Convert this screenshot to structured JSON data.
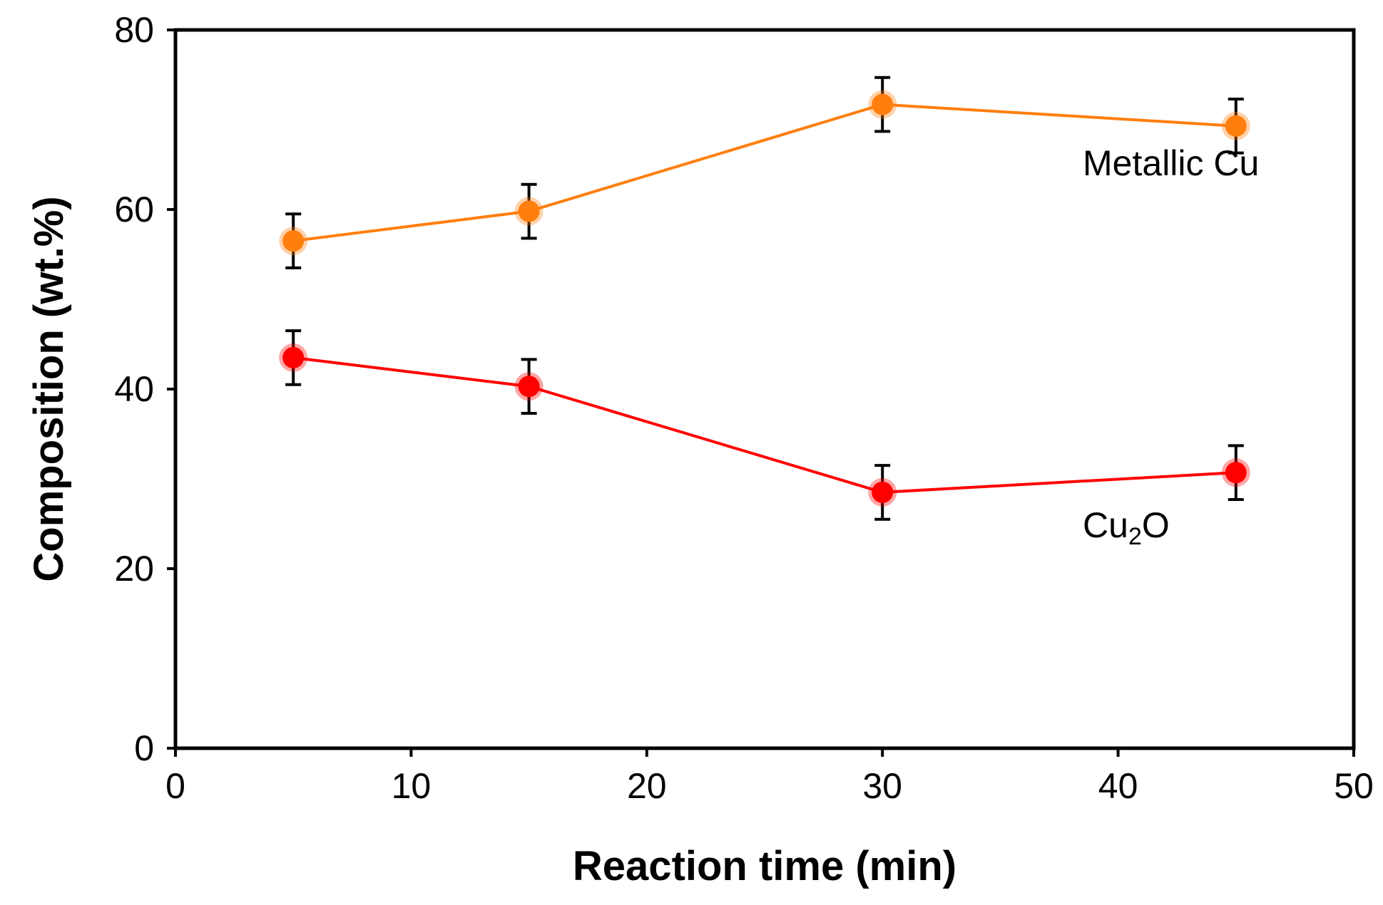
{
  "chart_data": {
    "type": "line",
    "title": "",
    "xlabel": "Reaction time (min)",
    "ylabel": "Composition (wt.%)",
    "xlim": [
      0,
      50
    ],
    "ylim": [
      0,
      80
    ],
    "xticks": [
      0,
      10,
      20,
      30,
      40,
      50
    ],
    "yticks": [
      0,
      20,
      40,
      60,
      80
    ],
    "grid": false,
    "series": [
      {
        "name": "Metallic Cu",
        "label_parts": [
          "Metallic Cu"
        ],
        "color": "#ff7f0e",
        "marker": "circle",
        "x": [
          5,
          15,
          30,
          45
        ],
        "y": [
          56.5,
          59.8,
          71.7,
          69.3
        ],
        "error": [
          3.0,
          3.0,
          3.0,
          3.0
        ],
        "label_anchor": [
          38.5,
          63.8
        ]
      },
      {
        "name": "Cu2O",
        "label_parts": [
          "Cu",
          "2",
          "O"
        ],
        "color": "#ff0000",
        "marker": "circle",
        "x": [
          5,
          15,
          30,
          45
        ],
        "y": [
          43.5,
          40.3,
          28.5,
          30.7
        ],
        "error": [
          3.0,
          3.0,
          3.0,
          3.0
        ],
        "label_anchor": [
          38.5,
          23.5
        ]
      }
    ]
  }
}
